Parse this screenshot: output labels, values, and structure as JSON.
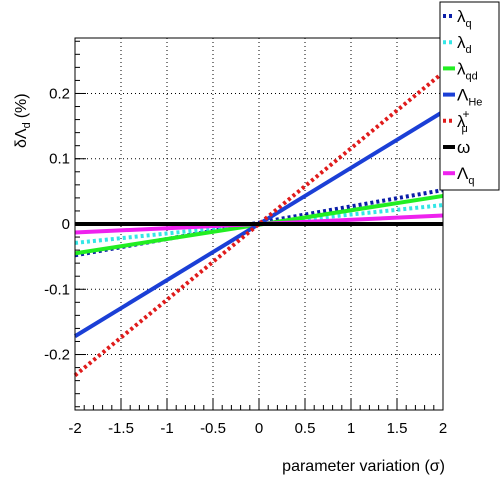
{
  "chart_data": {
    "type": "line",
    "title": "",
    "xlabel": "parameter variation (σ)",
    "ylabel": "δΛd (%)",
    "ylabel_main": "δΛ",
    "ylabel_sub": "d",
    "ylabel_unit": "(%)",
    "xlim": [
      -2,
      2
    ],
    "ylim": [
      -0.285,
      0.285
    ],
    "xticks": [
      -2,
      -1.5,
      -1,
      -0.5,
      0,
      0.5,
      1,
      1.5,
      2
    ],
    "xtick_labels": [
      "-2",
      "-1.5",
      "-1",
      "-0.5",
      "0",
      "0.5",
      "1",
      "1.5",
      "2"
    ],
    "yticks": [
      -0.2,
      -0.1,
      0,
      0.1,
      0.2
    ],
    "ytick_labels": [
      "-0.2",
      "-0.1",
      "0",
      "0.1",
      "0.2"
    ],
    "grid": true,
    "legend_position": "top-right",
    "series": [
      {
        "name": "λq",
        "main": "λ",
        "sub": "q",
        "sup": "",
        "color": "#0b1ea8",
        "style": "dotted",
        "x": [
          -2,
          2
        ],
        "y": [
          -0.048,
          0.052
        ]
      },
      {
        "name": "λd",
        "main": "λ",
        "sub": "d",
        "sup": "",
        "color": "#33e6e6",
        "style": "dotted",
        "x": [
          -2,
          2
        ],
        "y": [
          -0.029,
          0.029
        ]
      },
      {
        "name": "λqd",
        "main": "λ",
        "sub": "qd",
        "sup": "",
        "color": "#22ee22",
        "style": "solid",
        "x": [
          -2,
          2
        ],
        "y": [
          -0.045,
          0.043
        ]
      },
      {
        "name": "ΛHe",
        "main": "Λ",
        "sub": "He",
        "sup": "",
        "color": "#1b3fd6",
        "style": "solid",
        "x": [
          -2,
          2
        ],
        "y": [
          -0.172,
          0.172
        ]
      },
      {
        "name": "λμ+",
        "main": "λ",
        "sub": "μ",
        "sup": "+",
        "color": "#e01b1b",
        "style": "dotted",
        "x": [
          -2,
          2
        ],
        "y": [
          -0.232,
          0.232
        ]
      },
      {
        "name": "ω",
        "main": "ω",
        "sub": "",
        "sup": "",
        "color": "#000000",
        "style": "solid",
        "x": [
          -2,
          2
        ],
        "y": [
          0,
          0
        ]
      },
      {
        "name": "Λq",
        "main": "Λ",
        "sub": "q",
        "sup": "",
        "color": "#ee22ee",
        "style": "solid",
        "x": [
          -2,
          2
        ],
        "y": [
          -0.013,
          0.013
        ]
      }
    ]
  }
}
